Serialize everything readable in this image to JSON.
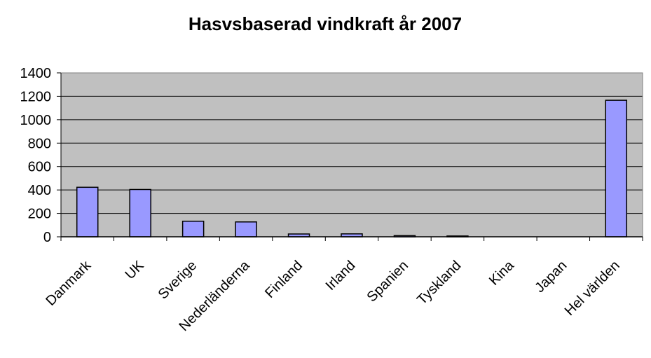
{
  "chart_data": {
    "type": "bar",
    "title": "Hasvsbaserad vindkraft år 2007",
    "xlabel": "",
    "ylabel": "",
    "categories": [
      "Danmark",
      "UK",
      "Sverige",
      "Nederländerna",
      "Finland",
      "Irland",
      "Spanien",
      "Tyskland",
      "Kina",
      "Japan",
      "Hel världen"
    ],
    "values": [
      423,
      404,
      133,
      127,
      24,
      25,
      10,
      7,
      0,
      0,
      1166
    ],
    "ylim": [
      0,
      1400
    ],
    "yticks": [
      "0",
      "200",
      "400",
      "600",
      "800",
      "1000",
      "1200",
      "1400"
    ],
    "grid": true,
    "legend": "none",
    "colors": {
      "plot_background": "#c0c0c0",
      "bar_fill": "#9999ff",
      "bar_stroke": "#000000",
      "gridline": "#000000"
    }
  }
}
